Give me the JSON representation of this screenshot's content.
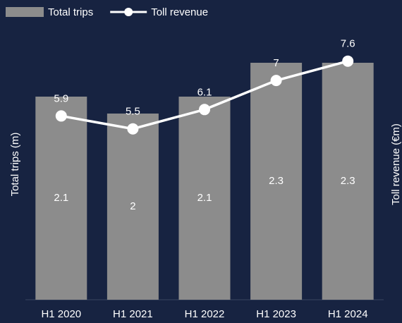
{
  "chart_data": {
    "type": "bar-line",
    "categories": [
      "H1 2020",
      "H1 2021",
      "H1 2022",
      "H1 2023",
      "H1 2024"
    ],
    "series": [
      {
        "name": "Total trips",
        "color": "#8c8c8c",
        "type": "bar",
        "axis": "y",
        "values": [
          2.1,
          2.0,
          2.1,
          2.3,
          2.3
        ]
      },
      {
        "name": "Toll revenue",
        "color": "#ffffff",
        "type": "line",
        "axis": "y2",
        "values": [
          5.9,
          5.5,
          6.1,
          7.0,
          7.6
        ]
      }
    ],
    "ylabel": "Total trips (m)",
    "y2label": "Toll revenue (€m)",
    "ylim": [
      0.9,
      2.5
    ],
    "y2lim": [
      0.2,
      8.6
    ],
    "legend": "top-left"
  }
}
